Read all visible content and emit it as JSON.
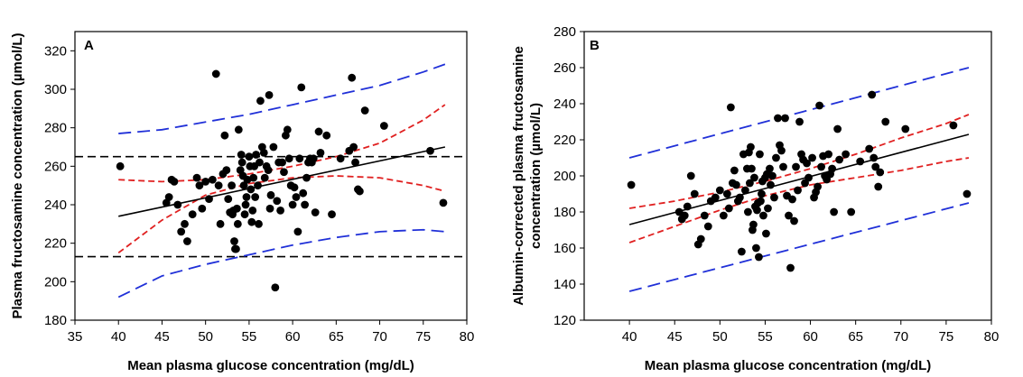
{
  "chart_data": [
    {
      "type": "scatter",
      "panel_label": "A",
      "xlabel": "Mean plasma glucose concentration (mg/dL)",
      "ylabel": "Plasma fructosamine concentration (µmol/L)",
      "xlim": [
        35,
        80
      ],
      "ylim": [
        180,
        330
      ],
      "xticks": [
        "35",
        "40",
        "45",
        "50",
        "55",
        "60",
        "65",
        "70",
        "75",
        "80"
      ],
      "yticks": [
        "180",
        "200",
        "220",
        "240",
        "260",
        "280",
        "300",
        "320"
      ],
      "grid": false,
      "reference_lines_y": [
        265,
        213
      ],
      "regression": {
        "x": [
          40,
          77.5
        ],
        "y": [
          234,
          270
        ]
      },
      "ci_upper": {
        "x": [
          40,
          45,
          50,
          55,
          60,
          65,
          70,
          75,
          77.5
        ],
        "y": [
          253,
          252,
          253,
          256,
          260,
          265,
          272,
          284,
          292
        ]
      },
      "ci_lower": {
        "x": [
          40,
          45,
          50,
          55,
          60,
          65,
          70,
          75,
          77.5
        ],
        "y": [
          215,
          232,
          245,
          251,
          254,
          255,
          254,
          250,
          247
        ]
      },
      "pi_upper": {
        "x": [
          40,
          45,
          50,
          55,
          60,
          65,
          70,
          75,
          77.5
        ],
        "y": [
          277,
          279,
          283,
          287,
          292,
          297,
          302,
          309,
          313
        ]
      },
      "pi_lower": {
        "x": [
          40,
          45,
          50,
          55,
          60,
          65,
          70,
          75,
          77.5
        ],
        "y": [
          192,
          203,
          209,
          214,
          219,
          223,
          226,
          227,
          226
        ]
      },
      "points": [
        [
          40.2,
          260
        ],
        [
          45.5,
          241
        ],
        [
          45.8,
          244
        ],
        [
          46.1,
          253
        ],
        [
          46.4,
          252
        ],
        [
          46.8,
          240
        ],
        [
          47.2,
          226
        ],
        [
          47.6,
          230
        ],
        [
          47.9,
          221
        ],
        [
          48.5,
          235
        ],
        [
          49.0,
          254
        ],
        [
          49.3,
          250
        ],
        [
          49.6,
          238
        ],
        [
          50.0,
          252
        ],
        [
          50.4,
          243
        ],
        [
          50.8,
          253
        ],
        [
          51.2,
          308
        ],
        [
          51.5,
          250
        ],
        [
          51.7,
          230
        ],
        [
          52.0,
          256
        ],
        [
          52.2,
          276
        ],
        [
          52.4,
          258
        ],
        [
          52.6,
          243
        ],
        [
          52.8,
          236
        ],
        [
          53.0,
          250
        ],
        [
          53.1,
          235
        ],
        [
          53.2,
          237
        ],
        [
          53.3,
          221
        ],
        [
          53.4,
          217
        ],
        [
          53.5,
          217
        ],
        [
          53.6,
          238
        ],
        [
          53.7,
          230
        ],
        [
          53.8,
          279
        ],
        [
          54.0,
          258
        ],
        [
          54.1,
          266
        ],
        [
          54.2,
          262
        ],
        [
          54.3,
          255
        ],
        [
          54.4,
          250
        ],
        [
          54.5,
          235
        ],
        [
          54.6,
          240
        ],
        [
          54.7,
          244
        ],
        [
          54.8,
          253
        ],
        [
          55.0,
          265
        ],
        [
          55.1,
          260
        ],
        [
          55.2,
          248
        ],
        [
          55.3,
          231
        ],
        [
          55.4,
          237
        ],
        [
          55.5,
          254
        ],
        [
          55.6,
          260
        ],
        [
          55.7,
          244
        ],
        [
          55.8,
          266
        ],
        [
          56.0,
          250
        ],
        [
          56.1,
          230
        ],
        [
          56.2,
          262
        ],
        [
          56.3,
          294
        ],
        [
          56.5,
          270
        ],
        [
          56.7,
          267
        ],
        [
          56.8,
          254
        ],
        [
          57.0,
          260
        ],
        [
          57.2,
          258
        ],
        [
          57.3,
          297
        ],
        [
          57.4,
          238
        ],
        [
          57.5,
          245
        ],
        [
          57.8,
          270
        ],
        [
          58.0,
          197
        ],
        [
          58.2,
          242
        ],
        [
          58.4,
          262
        ],
        [
          58.6,
          237
        ],
        [
          58.8,
          262
        ],
        [
          59.0,
          257
        ],
        [
          59.2,
          276
        ],
        [
          59.4,
          279
        ],
        [
          59.6,
          264
        ],
        [
          59.8,
          250
        ],
        [
          60.0,
          240
        ],
        [
          60.2,
          249
        ],
        [
          60.4,
          244
        ],
        [
          60.6,
          226
        ],
        [
          60.8,
          264
        ],
        [
          61.0,
          301
        ],
        [
          61.2,
          246
        ],
        [
          61.4,
          240
        ],
        [
          61.6,
          254
        ],
        [
          61.8,
          262
        ],
        [
          62.0,
          264
        ],
        [
          62.2,
          262
        ],
        [
          62.4,
          264
        ],
        [
          62.6,
          236
        ],
        [
          63.0,
          278
        ],
        [
          63.2,
          267
        ],
        [
          63.9,
          276
        ],
        [
          64.5,
          235
        ],
        [
          65.5,
          264
        ],
        [
          66.5,
          268
        ],
        [
          66.8,
          306
        ],
        [
          67.0,
          270
        ],
        [
          67.2,
          262
        ],
        [
          67.5,
          248
        ],
        [
          67.7,
          247
        ],
        [
          68.3,
          289
        ],
        [
          70.5,
          281
        ],
        [
          75.8,
          268
        ],
        [
          77.3,
          241
        ]
      ],
      "colors": {
        "points": "#000000",
        "regression": "#000000",
        "ci": "#e02020",
        "pi": "#2030d8",
        "reference": "#000000"
      }
    },
    {
      "type": "scatter",
      "panel_label": "B",
      "xlabel": "Mean plasma glucose concentration (mg/dL)",
      "ylabel": "Albumin-corrected plasma fructosamine concentration (µmol/L)",
      "xlim": [
        35,
        80
      ],
      "ylim": [
        120,
        280
      ],
      "xticks": [
        "40",
        "45",
        "50",
        "55",
        "60",
        "65",
        "70",
        "75",
        "80"
      ],
      "yticks": [
        "120",
        "140",
        "160",
        "180",
        "200",
        "220",
        "240",
        "260",
        "280"
      ],
      "grid": false,
      "regression": {
        "x": [
          40,
          77.5
        ],
        "y": [
          173,
          223
        ]
      },
      "ci_upper": {
        "x": [
          40,
          45,
          50,
          55,
          60,
          65,
          70,
          75,
          77.5
        ],
        "y": [
          182,
          186,
          191,
          197,
          204,
          212,
          221,
          229,
          234
        ]
      },
      "ci_lower": {
        "x": [
          40,
          45,
          50,
          55,
          60,
          65,
          70,
          75,
          77.5
        ],
        "y": [
          163,
          172,
          181,
          189,
          195,
          199,
          203,
          208,
          210
        ]
      },
      "pi_upper": {
        "x": [
          40,
          77.5
        ],
        "y": [
          210,
          260
        ]
      },
      "pi_lower": {
        "x": [
          40,
          77.5
        ],
        "y": [
          136,
          185
        ]
      },
      "points": [
        [
          40.2,
          195
        ],
        [
          45.5,
          180
        ],
        [
          45.8,
          176
        ],
        [
          46.1,
          178
        ],
        [
          46.4,
          183
        ],
        [
          46.8,
          200
        ],
        [
          47.2,
          190
        ],
        [
          47.6,
          162
        ],
        [
          47.9,
          165
        ],
        [
          48.3,
          178
        ],
        [
          48.7,
          172
        ],
        [
          49.0,
          186
        ],
        [
          49.5,
          188
        ],
        [
          50.0,
          192
        ],
        [
          50.4,
          178
        ],
        [
          50.8,
          190
        ],
        [
          51.0,
          182
        ],
        [
          51.2,
          238
        ],
        [
          51.4,
          196
        ],
        [
          51.6,
          203
        ],
        [
          51.8,
          195
        ],
        [
          52.0,
          186
        ],
        [
          52.2,
          188
        ],
        [
          52.4,
          158
        ],
        [
          52.6,
          212
        ],
        [
          52.8,
          192
        ],
        [
          53.0,
          204
        ],
        [
          53.1,
          180
        ],
        [
          53.2,
          213
        ],
        [
          53.3,
          196
        ],
        [
          53.4,
          216
        ],
        [
          53.5,
          204
        ],
        [
          53.6,
          170
        ],
        [
          53.7,
          173
        ],
        [
          53.8,
          199
        ],
        [
          53.9,
          183
        ],
        [
          54.0,
          160
        ],
        [
          54.1,
          181
        ],
        [
          54.2,
          185
        ],
        [
          54.3,
          155
        ],
        [
          54.4,
          212
        ],
        [
          54.5,
          186
        ],
        [
          54.6,
          190
        ],
        [
          54.7,
          197
        ],
        [
          54.8,
          178
        ],
        [
          55.0,
          199
        ],
        [
          55.1,
          168
        ],
        [
          55.2,
          201
        ],
        [
          55.3,
          182
        ],
        [
          55.5,
          204
        ],
        [
          55.6,
          195
        ],
        [
          55.8,
          200
        ],
        [
          56.0,
          188
        ],
        [
          56.2,
          210
        ],
        [
          56.4,
          232
        ],
        [
          56.6,
          217
        ],
        [
          56.8,
          214
        ],
        [
          57.0,
          205
        ],
        [
          57.2,
          232
        ],
        [
          57.4,
          189
        ],
        [
          57.6,
          178
        ],
        [
          57.8,
          149
        ],
        [
          58.0,
          187
        ],
        [
          58.2,
          175
        ],
        [
          58.4,
          205
        ],
        [
          58.6,
          192
        ],
        [
          58.8,
          230
        ],
        [
          59.0,
          212
        ],
        [
          59.2,
          209
        ],
        [
          59.4,
          196
        ],
        [
          59.6,
          207
        ],
        [
          59.8,
          199
        ],
        [
          60.2,
          210
        ],
        [
          60.4,
          188
        ],
        [
          60.6,
          191
        ],
        [
          60.8,
          194
        ],
        [
          61.0,
          239
        ],
        [
          61.2,
          205
        ],
        [
          61.4,
          211
        ],
        [
          61.6,
          200
        ],
        [
          61.8,
          198
        ],
        [
          62.0,
          212
        ],
        [
          62.2,
          201
        ],
        [
          62.4,
          204
        ],
        [
          62.6,
          180
        ],
        [
          63.0,
          226
        ],
        [
          63.2,
          209
        ],
        [
          63.9,
          212
        ],
        [
          64.5,
          180
        ],
        [
          65.5,
          208
        ],
        [
          66.5,
          215
        ],
        [
          66.8,
          245
        ],
        [
          67.0,
          210
        ],
        [
          67.2,
          205
        ],
        [
          67.5,
          194
        ],
        [
          67.7,
          202
        ],
        [
          68.3,
          230
        ],
        [
          70.5,
          226
        ],
        [
          75.8,
          228
        ],
        [
          77.3,
          190
        ]
      ],
      "colors": {
        "points": "#000000",
        "regression": "#000000",
        "ci": "#e02020",
        "pi": "#2030d8"
      }
    }
  ]
}
